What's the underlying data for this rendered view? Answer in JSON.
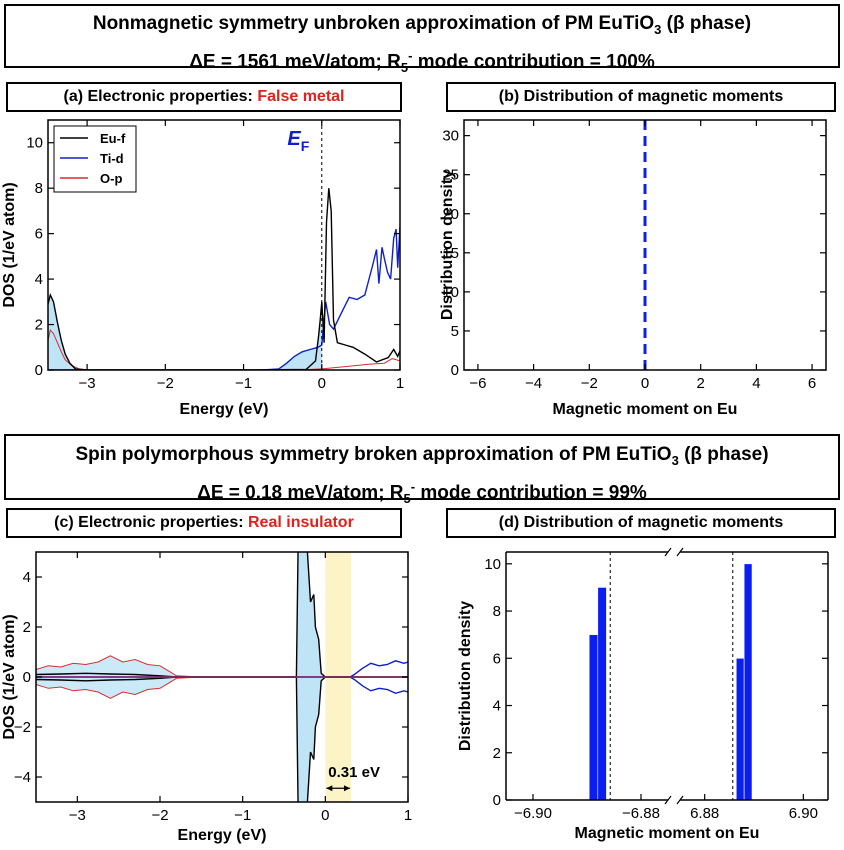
{
  "header_top": {
    "line1_prefix": "Nonmagnetic symmetry unbroken approximation of PM EuTiO",
    "line1_sub": "3",
    "line1_suffix": " (β phase)",
    "line2_prefix": "ΔE = 1561 meV/atom; R",
    "line2_sub": "5",
    "line2_sup": "-",
    "line2_suffix": " mode contribution = 100%"
  },
  "header_mid": {
    "line1_prefix": "Spin polymorphous symmetry broken approximation of PM EuTiO",
    "line1_sub": "3",
    "line1_suffix": " (β phase)",
    "line2_prefix": "ΔE = 0.18 meV/atom; R",
    "line2_sub": "5",
    "line2_sup": "-",
    "line2_suffix": " mode contribution = 99%"
  },
  "panel_a": {
    "title_prefix": "(a) Electronic properties: ",
    "title_highlight": "False metal"
  },
  "panel_b": {
    "title": "(b) Distribution of magnetic moments"
  },
  "panel_c": {
    "title_prefix": "(c) Electronic properties: ",
    "title_highlight": "Real insulator"
  },
  "panel_d": {
    "title": "(d) Distribution of magnetic moments"
  },
  "colors": {
    "eu_f": "#000000",
    "ti_d": "#1020c8",
    "o_p": "#d03030",
    "fill": "#bfe4f6",
    "gap": "#fcf3c6",
    "highlight": "#e0211c",
    "bar": "#0a1ef0"
  },
  "chart_data": [
    {
      "id": "a",
      "type": "line",
      "xlabel": "Energy (eV)",
      "ylabel": "DOS (1/eV atom)",
      "xlim": [
        -3.5,
        1
      ],
      "ylim": [
        0,
        11
      ],
      "xticks": [
        -3,
        -2,
        -1,
        0,
        1
      ],
      "yticks": [
        0,
        2,
        4,
        6,
        8,
        10
      ],
      "annotation": {
        "text": "E",
        "sub": "F"
      },
      "legend_position": "top-left",
      "series": [
        {
          "name": "Eu-f",
          "x": [
            -3.5,
            -3.47,
            -3.43,
            -3.38,
            -3.33,
            -3.28,
            -3.22,
            -3.15,
            -3.0,
            -2.0,
            -1.0,
            -0.2,
            -0.08,
            -0.04,
            -0.02,
            0.0,
            0.03,
            0.06,
            0.09,
            0.12,
            0.15,
            0.2,
            0.3,
            0.4,
            0.55,
            0.7,
            0.85,
            0.92,
            0.97,
            1.0
          ],
          "y": [
            2.9,
            3.3,
            3.0,
            2.1,
            1.3,
            0.7,
            0.3,
            0.05,
            0.0,
            0.0,
            0.0,
            0.02,
            0.4,
            1.5,
            2.2,
            3.0,
            1.2,
            6.5,
            8.0,
            7.0,
            2.2,
            1.2,
            1.1,
            1.0,
            0.7,
            0.35,
            0.55,
            0.9,
            0.6,
            0.85
          ]
        },
        {
          "name": "Ti-d",
          "x": [
            -3.5,
            -2.0,
            -0.75,
            -0.55,
            -0.45,
            -0.35,
            -0.25,
            -0.15,
            -0.05,
            0.0,
            0.05,
            0.1,
            0.15,
            0.25,
            0.35,
            0.45,
            0.55,
            0.65,
            0.7,
            0.73,
            0.77,
            0.8,
            0.84,
            0.88,
            0.92,
            0.95,
            0.97,
            1.0
          ],
          "y": [
            0.0,
            0.0,
            0.0,
            0.05,
            0.3,
            0.6,
            0.8,
            0.9,
            1.0,
            1.1,
            3.0,
            2.0,
            1.8,
            2.5,
            3.2,
            3.1,
            3.3,
            4.6,
            5.3,
            3.8,
            5.4,
            4.9,
            4.3,
            4.0,
            5.8,
            6.2,
            4.5,
            6.3
          ]
        },
        {
          "name": "O-p",
          "x": [
            -3.5,
            -3.47,
            -3.43,
            -3.38,
            -3.33,
            -3.28,
            -3.2,
            -3.1,
            -3.0,
            -1.0,
            -0.3,
            0.0,
            0.3,
            0.6,
            0.8,
            0.9,
            1.0
          ],
          "y": [
            1.3,
            1.75,
            1.6,
            1.2,
            0.8,
            0.45,
            0.2,
            0.05,
            0.0,
            0.0,
            0.0,
            0.05,
            0.15,
            0.25,
            0.3,
            0.5,
            0.4
          ]
        }
      ]
    },
    {
      "id": "b",
      "type": "line",
      "xlabel": "Magnetic moment on Eu",
      "ylabel": "Distribution density",
      "xlim": [
        -6.5,
        6.5
      ],
      "ylim": [
        0,
        32
      ],
      "xticks": [
        -6,
        -4,
        -2,
        0,
        2,
        4,
        6
      ],
      "yticks": [
        0,
        5,
        10,
        15,
        20,
        25,
        30
      ],
      "series": [
        {
          "x": [
            0,
            0
          ],
          "y": [
            0,
            32
          ]
        }
      ]
    },
    {
      "id": "c",
      "type": "line",
      "xlabel": "Energy (eV)",
      "ylabel": "DOS (1/eV atom)",
      "xlim": [
        -3.5,
        1
      ],
      "ylim": [
        -5,
        5
      ],
      "xticks": [
        -3,
        -2,
        -1,
        0,
        1
      ],
      "yticks": [
        -4,
        -2,
        0,
        2,
        4
      ],
      "gap": {
        "x0": 0.0,
        "x1": 0.31,
        "label": "0.31 eV"
      },
      "series": [
        {
          "name": "Eu-f",
          "x": [
            -3.5,
            -3.2,
            -2.9,
            -2.6,
            -2.3,
            -2.0,
            -1.8,
            -1.6,
            -1.0,
            -0.35,
            -0.33,
            -0.3,
            -0.22,
            -0.18,
            -0.14,
            -0.12,
            -0.08,
            -0.05,
            0.0,
            0.3,
            1.0
          ],
          "y": [
            0.1,
            0.12,
            0.15,
            0.12,
            0.1,
            0.05,
            0.0,
            0.0,
            0.0,
            0.0,
            5.2,
            5.2,
            5.2,
            3.0,
            3.3,
            2.0,
            1.5,
            0.15,
            0.0,
            0.0,
            0.0
          ]
        },
        {
          "name": "Ti-d",
          "x": [
            -3.5,
            -1.0,
            -0.3,
            0.0,
            0.3,
            0.35,
            0.45,
            0.55,
            0.65,
            0.75,
            0.85,
            0.95,
            1.0
          ],
          "y": [
            0.0,
            0.0,
            0.0,
            0.0,
            0.0,
            0.1,
            0.35,
            0.55,
            0.45,
            0.5,
            0.65,
            0.55,
            0.6
          ]
        },
        {
          "name": "O-p",
          "x": [
            -3.5,
            -3.35,
            -3.2,
            -3.05,
            -2.9,
            -2.75,
            -2.6,
            -2.45,
            -2.3,
            -2.15,
            -2.0,
            -1.9,
            -1.8,
            -1.5,
            -0.5,
            0.0,
            1.0
          ],
          "y": [
            0.3,
            0.45,
            0.4,
            0.55,
            0.5,
            0.6,
            0.85,
            0.6,
            0.7,
            0.5,
            0.45,
            0.25,
            0.05,
            0.0,
            0.0,
            0.0,
            0.0
          ]
        }
      ]
    },
    {
      "id": "d",
      "type": "bar",
      "xlabel": "Magnetic moment on Eu",
      "ylabel": "Distribution density",
      "ylim": [
        0,
        10.5
      ],
      "yticks": [
        0,
        2,
        4,
        6,
        8,
        10
      ],
      "left_axis": {
        "xlim": [
          -6.905,
          -6.875
        ],
        "xticks": [
          -6.9,
          -6.88
        ],
        "xtick_labels": [
          "−6.90",
          "−6.88"
        ],
        "mean": -6.8857
      },
      "right_axis": {
        "xlim": [
          6.875,
          6.905
        ],
        "xticks": [
          6.88,
          6.9
        ],
        "xtick_labels": [
          "6.88",
          "6.90"
        ],
        "mean": 6.8857
      },
      "bars": [
        {
          "x": -6.8888,
          "value": 7
        },
        {
          "x": -6.8872,
          "value": 9
        },
        {
          "x": 6.8872,
          "value": 6
        },
        {
          "x": 6.8888,
          "value": 10
        }
      ],
      "bar_width": 0.0016
    }
  ]
}
